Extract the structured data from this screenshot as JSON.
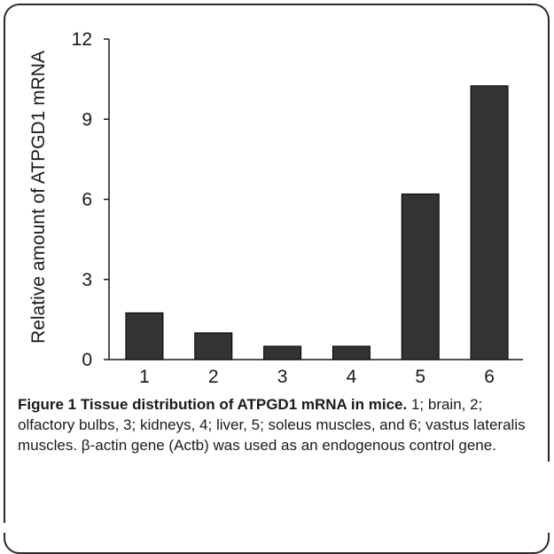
{
  "chart_data": {
    "type": "bar",
    "categories": [
      "1",
      "2",
      "3",
      "4",
      "5",
      "6"
    ],
    "values": [
      1.75,
      1.0,
      0.5,
      0.5,
      6.2,
      10.25
    ],
    "ylabel": "Relative amount of ATPGD1 mRNA",
    "ylim": [
      0,
      12
    ],
    "yticks": [
      "0",
      "3",
      "6",
      "9",
      "12"
    ],
    "grid": false,
    "bar_color": "#333333"
  },
  "caption": {
    "label": "Figure 1 Tissue distribution of ATPGD1 mRNA in mice.",
    "text": " 1; brain, 2; olfactory bulbs, 3; kidneys, 4; liver, 5; soleus muscles, and 6; vastus lateralis muscles. β-actin gene (Actb) was used as an endogenous control gene."
  }
}
